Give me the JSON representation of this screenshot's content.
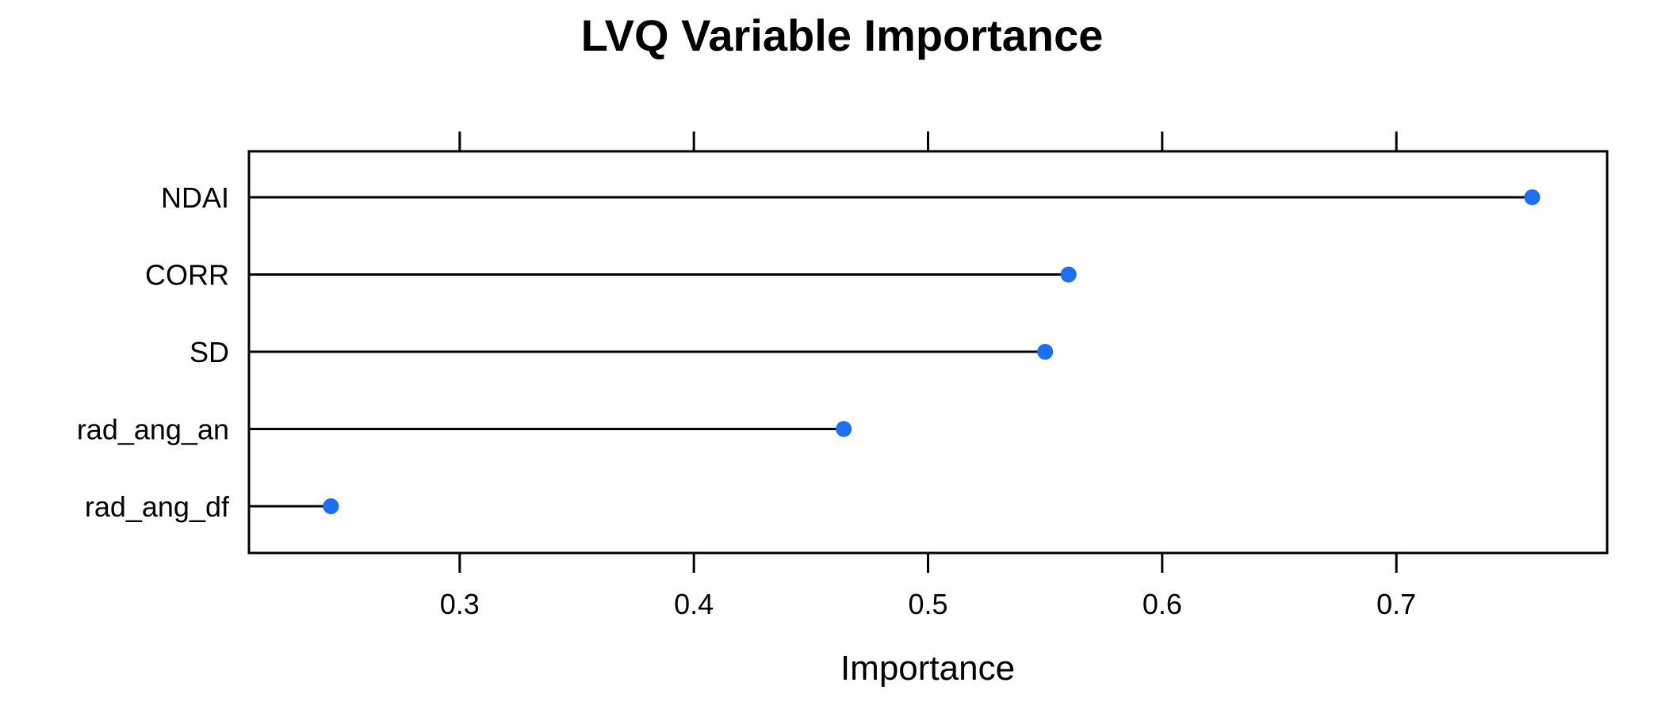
{
  "chart_data": {
    "type": "dot",
    "title": "LVQ Variable Importance",
    "xlabel": "Importance",
    "ylabel": "",
    "xlim": [
      0.21,
      0.79
    ],
    "xticks": [
      0.3,
      0.4,
      0.5,
      0.6,
      0.7
    ],
    "xtick_labels": [
      "0.3",
      "0.4",
      "0.5",
      "0.6",
      "0.7"
    ],
    "categories": [
      "NDAI",
      "CORR",
      "SD",
      "rad_ang_an",
      "rad_ang_df"
    ],
    "values": [
      0.758,
      0.56,
      0.55,
      0.464,
      0.245
    ],
    "grid": false,
    "legend": "none",
    "colors": {
      "point": "#1a6ff5",
      "line": "#000000",
      "frame": "#000000"
    }
  }
}
